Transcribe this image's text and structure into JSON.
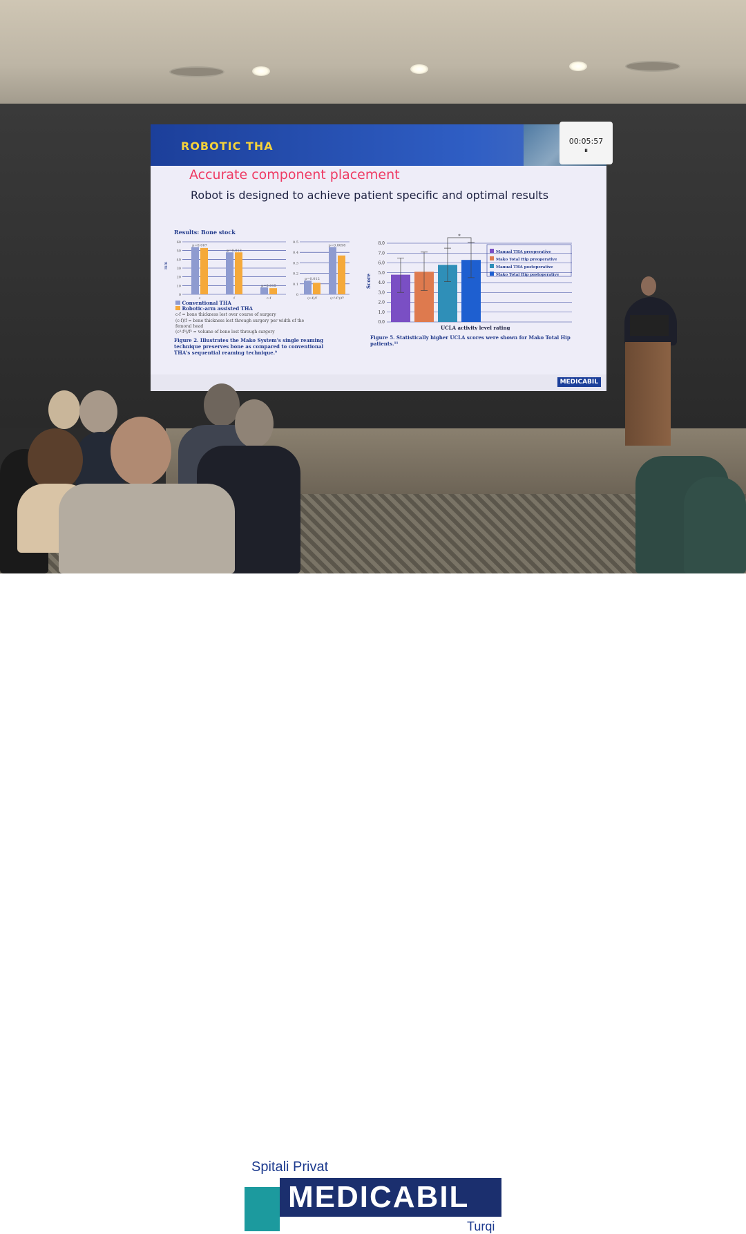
{
  "slide": {
    "title": "ROBOTIC THA",
    "subtitle": "Accurate component placement",
    "lead": "Robot is designed to achieve patient specific and optimal results",
    "timer": "00:05:57",
    "footer_logo": "MEDICABIL",
    "bone_stock": {
      "heading": "Results: Bone stock",
      "ylabel": "mm",
      "legend": [
        "Conventional THA",
        "Robotic-arm assisted THA"
      ],
      "colors": [
        "#8e9bd0",
        "#f5a93a"
      ],
      "left": {
        "categories": [
          "c",
          "f",
          "c-f"
        ],
        "yticks": [
          0,
          10,
          20,
          30,
          40,
          50,
          60
        ],
        "ylim": [
          0,
          60
        ],
        "conventional": [
          54,
          48,
          8
        ],
        "robotic": [
          53,
          48,
          7
        ],
        "pvalues": [
          "p=0.067",
          "p=0.013",
          "p=0.015"
        ]
      },
      "right": {
        "categories": [
          "(c-f)/f",
          "(c³-f³)/f³"
        ],
        "yticks": [
          0,
          0.1,
          0.2,
          0.3,
          0.4,
          0.5
        ],
        "ylim": [
          0,
          0.5
        ],
        "conventional": [
          0.13,
          0.45
        ],
        "robotic": [
          0.11,
          0.37
        ],
        "pvalues": [
          "p=0.012",
          "p=0.0098"
        ]
      },
      "notes": [
        "c-f = bone thickness lost over course of surgery",
        "(c-f)/f = bone thickness lost through surgery per width of the femoral head",
        "(c³-f³)/f³ = volume of bone lost through surgery"
      ],
      "caption": "Figure 2. Illustrates the Mako System's single reaming technique preserves bone as compared to conventional THA's sequential reaming technique.⁹"
    },
    "ucla": {
      "type": "bar",
      "ylabel": "Score",
      "xlabel": "UCLA activity level rating",
      "ylim": [
        0,
        8
      ],
      "yticks": [
        "0.0",
        "1.0",
        "2.0",
        "3.0",
        "4.0",
        "5.0",
        "6.0",
        "7.0",
        "8.0"
      ],
      "series": [
        {
          "name": "Manual THA preoperative",
          "value": 4.8,
          "err": [
            3.0,
            6.5
          ],
          "color": "#7a4fc4"
        },
        {
          "name": "Mako Total Hip preoperative",
          "value": 5.1,
          "err": [
            3.2,
            7.1
          ],
          "color": "#de7a4e"
        },
        {
          "name": "Manual THA postoperative",
          "value": 5.8,
          "err": [
            4.1,
            7.5
          ],
          "color": "#2f8fb8"
        },
        {
          "name": "Mako Total Hip postoperative",
          "value": 6.3,
          "err": [
            4.5,
            8.1
          ],
          "color": "#1e5fd0"
        }
      ],
      "significance": "*",
      "caption": "Figure 5. Statistically higher UCLA scores were shown for Mako Total Hip patients.¹¹"
    }
  },
  "logo": {
    "top": "Spitali Privat",
    "name": "MEDICABIL",
    "bottom": "Turqi",
    "navy": "#1b2f6e",
    "teal": "#1c9a9e"
  }
}
